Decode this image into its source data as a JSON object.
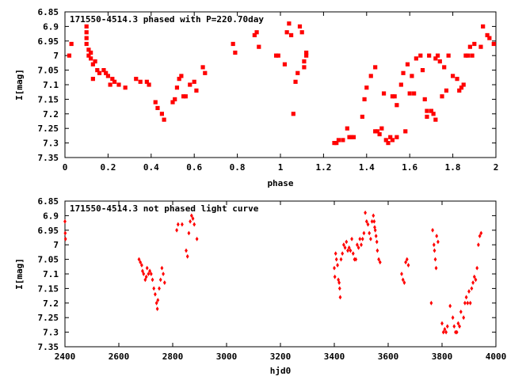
{
  "chart_data": [
    {
      "type": "scatter",
      "title": "171550-4514.3 phased with P=220.70day",
      "xlabel": "phase",
      "ylabel": "I[mag]",
      "xlim": [
        0,
        2
      ],
      "ylim": [
        7.35,
        6.85
      ],
      "y_inverted": true,
      "x_ticks": [
        "0",
        "0.2",
        "0.4",
        "0.6",
        "0.8",
        "1",
        "1.2",
        "1.4",
        "1.6",
        "1.8",
        "2"
      ],
      "x_tick_values": [
        0,
        0.2,
        0.4,
        0.6,
        0.8,
        1.0,
        1.2,
        1.4,
        1.6,
        1.8,
        2.0
      ],
      "y_ticks": [
        "6.85",
        "6.9",
        "6.95",
        "7",
        "7.05",
        "7.1",
        "7.15",
        "7.2",
        "7.25",
        "7.3",
        "7.35"
      ],
      "y_tick_values": [
        6.85,
        6.9,
        6.95,
        7.0,
        7.05,
        7.1,
        7.15,
        7.2,
        7.25,
        7.3,
        7.35
      ],
      "marker_color": "#ff0000",
      "points": [
        [
          0.02,
          7.0
        ],
        [
          0.03,
          6.96
        ],
        [
          0.1,
          6.9
        ],
        [
          0.1,
          6.92
        ],
        [
          0.1,
          6.94
        ],
        [
          0.1,
          6.96
        ],
        [
          0.11,
          6.98
        ],
        [
          0.11,
          7.0
        ],
        [
          0.12,
          6.99
        ],
        [
          0.12,
          7.01
        ],
        [
          0.13,
          7.03
        ],
        [
          0.14,
          7.02
        ],
        [
          0.13,
          7.08
        ],
        [
          0.15,
          7.05
        ],
        [
          0.16,
          7.06
        ],
        [
          0.18,
          7.05
        ],
        [
          0.19,
          7.06
        ],
        [
          0.2,
          7.07
        ],
        [
          0.21,
          7.1
        ],
        [
          0.22,
          7.08
        ],
        [
          0.23,
          7.09
        ],
        [
          0.25,
          7.1
        ],
        [
          0.28,
          7.11
        ],
        [
          0.33,
          7.08
        ],
        [
          0.35,
          7.09
        ],
        [
          0.38,
          7.09
        ],
        [
          0.39,
          7.1
        ],
        [
          0.42,
          7.16
        ],
        [
          0.43,
          7.18
        ],
        [
          0.45,
          7.2
        ],
        [
          0.46,
          7.22
        ],
        [
          0.5,
          7.16
        ],
        [
          0.51,
          7.15
        ],
        [
          0.52,
          7.11
        ],
        [
          0.53,
          7.08
        ],
        [
          0.54,
          7.07
        ],
        [
          0.55,
          7.14
        ],
        [
          0.56,
          7.14
        ],
        [
          0.58,
          7.1
        ],
        [
          0.6,
          7.09
        ],
        [
          0.61,
          7.12
        ],
        [
          0.64,
          7.04
        ],
        [
          0.65,
          7.06
        ],
        [
          0.78,
          6.96
        ],
        [
          0.79,
          6.99
        ],
        [
          0.88,
          6.93
        ],
        [
          0.89,
          6.92
        ],
        [
          0.9,
          6.97
        ],
        [
          0.98,
          7.0
        ],
        [
          0.99,
          7.0
        ],
        [
          1.02,
          7.03
        ],
        [
          1.03,
          6.92
        ],
        [
          1.04,
          6.89
        ],
        [
          1.05,
          6.93
        ],
        [
          1.06,
          7.2
        ],
        [
          1.07,
          7.09
        ],
        [
          1.08,
          7.06
        ],
        [
          1.09,
          6.9
        ],
        [
          1.1,
          6.92
        ],
        [
          1.11,
          7.04
        ],
        [
          1.11,
          7.02
        ],
        [
          1.12,
          7.0
        ],
        [
          1.12,
          6.99
        ],
        [
          1.25,
          7.3
        ],
        [
          1.26,
          7.3
        ],
        [
          1.27,
          7.29
        ],
        [
          1.29,
          7.29
        ],
        [
          1.31,
          7.25
        ],
        [
          1.32,
          7.28
        ],
        [
          1.33,
          7.28
        ],
        [
          1.34,
          7.28
        ],
        [
          1.38,
          7.21
        ],
        [
          1.39,
          7.15
        ],
        [
          1.4,
          7.11
        ],
        [
          1.42,
          7.07
        ],
        [
          1.44,
          7.04
        ],
        [
          1.44,
          7.26
        ],
        [
          1.45,
          7.26
        ],
        [
          1.46,
          7.27
        ],
        [
          1.47,
          7.25
        ],
        [
          1.48,
          7.13
        ],
        [
          1.49,
          7.29
        ],
        [
          1.5,
          7.3
        ],
        [
          1.51,
          7.28
        ],
        [
          1.52,
          7.29
        ],
        [
          1.52,
          7.14
        ],
        [
          1.53,
          7.14
        ],
        [
          1.54,
          7.28
        ],
        [
          1.54,
          7.17
        ],
        [
          1.56,
          7.1
        ],
        [
          1.57,
          7.06
        ],
        [
          1.58,
          7.26
        ],
        [
          1.59,
          7.03
        ],
        [
          1.6,
          7.13
        ],
        [
          1.61,
          7.07
        ],
        [
          1.62,
          7.13
        ],
        [
          1.63,
          7.01
        ],
        [
          1.65,
          7.0
        ],
        [
          1.66,
          7.05
        ],
        [
          1.67,
          7.15
        ],
        [
          1.68,
          7.21
        ],
        [
          1.68,
          7.19
        ],
        [
          1.69,
          7.0
        ],
        [
          1.7,
          7.19
        ],
        [
          1.71,
          7.2
        ],
        [
          1.72,
          7.22
        ],
        [
          1.72,
          7.01
        ],
        [
          1.73,
          7.0
        ],
        [
          1.74,
          7.02
        ],
        [
          1.75,
          7.14
        ],
        [
          1.76,
          7.04
        ],
        [
          1.77,
          7.12
        ],
        [
          1.78,
          7.0
        ],
        [
          1.8,
          7.07
        ],
        [
          1.82,
          7.08
        ],
        [
          1.83,
          7.12
        ],
        [
          1.84,
          7.11
        ],
        [
          1.85,
          7.1
        ],
        [
          1.86,
          7.0
        ],
        [
          1.87,
          7.0
        ],
        [
          1.88,
          6.97
        ],
        [
          1.89,
          7.0
        ],
        [
          1.9,
          6.96
        ],
        [
          1.93,
          6.97
        ],
        [
          1.94,
          6.9
        ],
        [
          1.96,
          6.93
        ],
        [
          1.97,
          6.94
        ],
        [
          1.99,
          6.96
        ]
      ]
    },
    {
      "type": "scatter",
      "title": "171550-4514.3 not phased light curve",
      "xlabel": "hjd0",
      "ylabel": "I[mag]",
      "xlim": [
        2400,
        4000
      ],
      "ylim": [
        7.35,
        6.85
      ],
      "y_inverted": true,
      "x_ticks": [
        "2400",
        "2600",
        "2800",
        "3000",
        "3200",
        "3400",
        "3600",
        "3800",
        "4000"
      ],
      "x_tick_values": [
        2400,
        2600,
        2800,
        3000,
        3200,
        3400,
        3600,
        3800,
        4000
      ],
      "y_ticks": [
        "6.85",
        "6.9",
        "6.95",
        "7",
        "7.05",
        "7.1",
        "7.15",
        "7.2",
        "7.25",
        "7.3",
        "7.35"
      ],
      "y_tick_values": [
        6.85,
        6.9,
        6.95,
        7.0,
        7.05,
        7.1,
        7.15,
        7.2,
        7.25,
        7.3,
        7.35
      ],
      "marker_color": "#ff0000",
      "points": [
        [
          2400,
          6.92
        ],
        [
          2401,
          6.96
        ],
        [
          2402,
          6.98
        ],
        [
          2675,
          7.05
        ],
        [
          2680,
          7.06
        ],
        [
          2685,
          7.07
        ],
        [
          2688,
          7.09
        ],
        [
          2692,
          7.1
        ],
        [
          2698,
          7.12
        ],
        [
          2702,
          7.11
        ],
        [
          2705,
          7.08
        ],
        [
          2710,
          7.1
        ],
        [
          2715,
          7.09
        ],
        [
          2720,
          7.1
        ],
        [
          2725,
          7.12
        ],
        [
          2730,
          7.15
        ],
        [
          2735,
          7.17
        ],
        [
          2740,
          7.2
        ],
        [
          2743,
          7.22
        ],
        [
          2745,
          7.19
        ],
        [
          2750,
          7.15
        ],
        [
          2755,
          7.12
        ],
        [
          2760,
          7.08
        ],
        [
          2765,
          7.1
        ],
        [
          2770,
          7.13
        ],
        [
          2815,
          6.95
        ],
        [
          2820,
          6.93
        ],
        [
          2835,
          6.93
        ],
        [
          2850,
          7.02
        ],
        [
          2855,
          7.04
        ],
        [
          2860,
          6.96
        ],
        [
          2865,
          6.92
        ],
        [
          2870,
          6.9
        ],
        [
          2875,
          6.91
        ],
        [
          2880,
          6.93
        ],
        [
          2890,
          6.98
        ],
        [
          3400,
          7.08
        ],
        [
          3402,
          7.11
        ],
        [
          3405,
          7.03
        ],
        [
          3408,
          7.05
        ],
        [
          3412,
          7.07
        ],
        [
          3415,
          7.12
        ],
        [
          3418,
          7.13
        ],
        [
          3420,
          7.15
        ],
        [
          3422,
          7.18
        ],
        [
          3425,
          7.05
        ],
        [
          3430,
          7.03
        ],
        [
          3435,
          7.0
        ],
        [
          3440,
          7.01
        ],
        [
          3445,
          6.99
        ],
        [
          3450,
          7.02
        ],
        [
          3455,
          7.01
        ],
        [
          3460,
          7.02
        ],
        [
          3465,
          6.98
        ],
        [
          3470,
          7.03
        ],
        [
          3475,
          7.05
        ],
        [
          3480,
          7.05
        ],
        [
          3485,
          7.0
        ],
        [
          3490,
          7.01
        ],
        [
          3495,
          6.98
        ],
        [
          3500,
          7.0
        ],
        [
          3505,
          6.98
        ],
        [
          3510,
          6.96
        ],
        [
          3515,
          6.89
        ],
        [
          3520,
          6.92
        ],
        [
          3525,
          6.93
        ],
        [
          3530,
          6.96
        ],
        [
          3535,
          6.98
        ],
        [
          3540,
          6.92
        ],
        [
          3545,
          6.9
        ],
        [
          3548,
          6.92
        ],
        [
          3550,
          6.94
        ],
        [
          3552,
          6.95
        ],
        [
          3555,
          6.97
        ],
        [
          3558,
          6.99
        ],
        [
          3560,
          7.02
        ],
        [
          3565,
          7.05
        ],
        [
          3570,
          7.06
        ],
        [
          3650,
          7.1
        ],
        [
          3655,
          7.12
        ],
        [
          3660,
          7.13
        ],
        [
          3665,
          7.06
        ],
        [
          3670,
          7.05
        ],
        [
          3675,
          7.07
        ],
        [
          3760,
          7.2
        ],
        [
          3765,
          6.95
        ],
        [
          3770,
          7.0
        ],
        [
          3772,
          7.02
        ],
        [
          3775,
          7.05
        ],
        [
          3778,
          7.08
        ],
        [
          3780,
          6.97
        ],
        [
          3785,
          6.99
        ],
        [
          3800,
          7.27
        ],
        [
          3805,
          7.3
        ],
        [
          3810,
          7.29
        ],
        [
          3815,
          7.3
        ],
        [
          3820,
          7.28
        ],
        [
          3830,
          7.21
        ],
        [
          3840,
          7.25
        ],
        [
          3845,
          7.28
        ],
        [
          3850,
          7.3
        ],
        [
          3855,
          7.3
        ],
        [
          3860,
          7.27
        ],
        [
          3865,
          7.28
        ],
        [
          3870,
          7.23
        ],
        [
          3880,
          7.25
        ],
        [
          3885,
          7.2
        ],
        [
          3890,
          7.18
        ],
        [
          3895,
          7.2
        ],
        [
          3900,
          7.16
        ],
        [
          3905,
          7.2
        ],
        [
          3910,
          7.15
        ],
        [
          3915,
          7.13
        ],
        [
          3920,
          7.11
        ],
        [
          3925,
          7.12
        ],
        [
          3930,
          7.08
        ],
        [
          3935,
          7.0
        ],
        [
          3940,
          6.97
        ],
        [
          3945,
          6.96
        ]
      ]
    }
  ]
}
